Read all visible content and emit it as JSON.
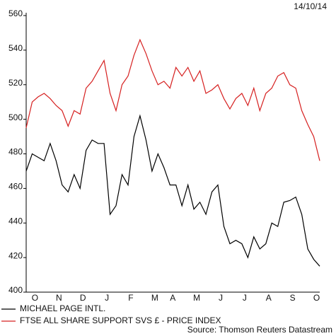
{
  "chart_data": {
    "type": "line",
    "date_label": "14/10/14",
    "source": "Source: Thomson Reuters Datastream",
    "categories": [
      null,
      "O",
      null,
      null,
      null,
      "N",
      null,
      null,
      null,
      "D",
      null,
      null,
      null,
      "J",
      null,
      null,
      null,
      "F",
      null,
      null,
      null,
      "M",
      null,
      null,
      "A",
      null,
      null,
      null,
      "M",
      null,
      null,
      null,
      "J",
      null,
      null,
      null,
      "J",
      null,
      null,
      null,
      "A",
      null,
      null,
      null,
      "S",
      null,
      null,
      null,
      "O",
      null
    ],
    "series": [
      {
        "name": "MICHAEL PAGE INTL.",
        "color": "#000000",
        "values": [
          470,
          480,
          478,
          476,
          486,
          476,
          462,
          458,
          468,
          460,
          482,
          488,
          486,
          486,
          445,
          450,
          468,
          462,
          490,
          502,
          488,
          470,
          480,
          472,
          462,
          462,
          450,
          462,
          448,
          452,
          445,
          458,
          462,
          438,
          428,
          430,
          428,
          420,
          432,
          425,
          428,
          440,
          438,
          452,
          453,
          455,
          445,
          425,
          419,
          415
        ]
      },
      {
        "name": "FTSE ALL SHARE SUPPORT SVS £ - PRICE INDEX",
        "color": "#d62020",
        "values": [
          495,
          510,
          513,
          515,
          512,
          508,
          505,
          496,
          505,
          503,
          518,
          522,
          528,
          534,
          515,
          505,
          520,
          525,
          537,
          546,
          538,
          528,
          520,
          522,
          518,
          530,
          525,
          530,
          522,
          528,
          515,
          517,
          520,
          512,
          506,
          512,
          515,
          508,
          518,
          505,
          515,
          518,
          525,
          527,
          520,
          518,
          505,
          497,
          490,
          476
        ]
      }
    ],
    "ylim": [
      400,
      560
    ],
    "yticks": [
      400,
      420,
      440,
      460,
      480,
      500,
      520,
      540,
      560
    ]
  }
}
